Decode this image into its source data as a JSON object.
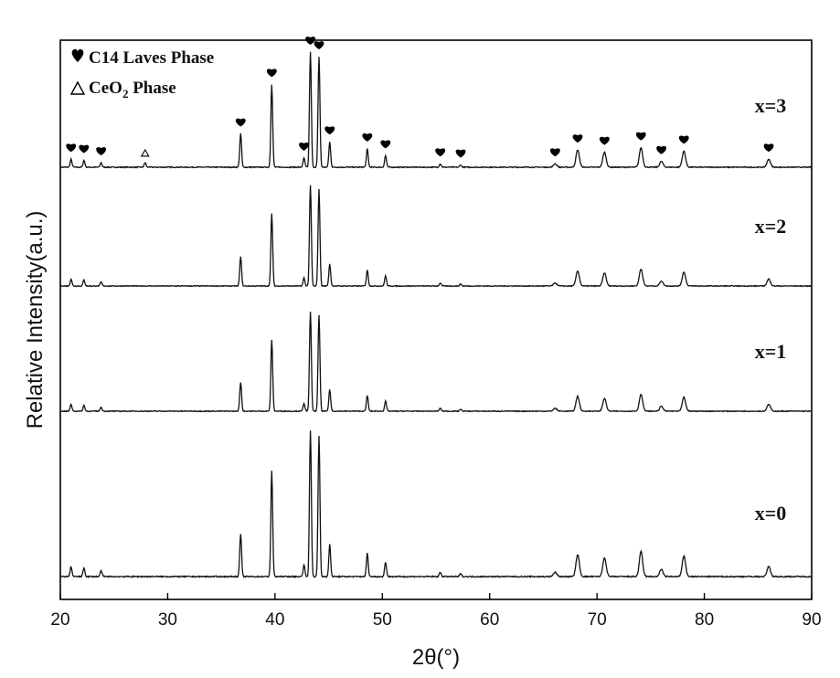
{
  "chart_data": {
    "type": "line",
    "xlabel": "2θ(°)",
    "ylabel": "Relative Intensity(a.u.)",
    "xlim": [
      20,
      90
    ],
    "xticks": [
      20,
      30,
      40,
      50,
      60,
      70,
      80,
      90
    ],
    "grid": false,
    "legend_position": "top-left",
    "legend": [
      {
        "marker": "heart",
        "label": "C14 Laves Phase"
      },
      {
        "marker": "triangle",
        "label": "CeO",
        "subscript": "2",
        "suffix": " Phase"
      }
    ],
    "peaks": [
      {
        "x": 21.0,
        "h": 0.07
      },
      {
        "x": 22.2,
        "h": 0.06
      },
      {
        "x": 23.8,
        "h": 0.04
      },
      {
        "x": 36.8,
        "h": 0.29
      },
      {
        "x": 39.7,
        "h": 0.72
      },
      {
        "x": 42.7,
        "h": 0.08
      },
      {
        "x": 43.3,
        "h": 1.0
      },
      {
        "x": 44.1,
        "h": 0.96
      },
      {
        "x": 45.1,
        "h": 0.22
      },
      {
        "x": 48.6,
        "h": 0.16
      },
      {
        "x": 50.3,
        "h": 0.1
      },
      {
        "x": 55.4,
        "h": 0.03
      },
      {
        "x": 57.3,
        "h": 0.02
      },
      {
        "x": 66.1,
        "h": 0.03
      },
      {
        "x": 68.2,
        "h": 0.15
      },
      {
        "x": 70.7,
        "h": 0.13
      },
      {
        "x": 74.1,
        "h": 0.17
      },
      {
        "x": 76.0,
        "h": 0.05
      },
      {
        "x": 78.1,
        "h": 0.14
      },
      {
        "x": 86.0,
        "h": 0.07
      }
    ],
    "series": [
      {
        "name": "x=3",
        "offset": 3,
        "scale": 1.0,
        "ceo2_peak": {
          "x": 27.9,
          "h": 0.04
        }
      },
      {
        "name": "x=2",
        "offset": 2,
        "scale": 1.0,
        "ceo2_peak": null
      },
      {
        "name": "x=1",
        "offset": 1,
        "scale": 1.0,
        "ceo2_peak": null
      },
      {
        "name": "x=0",
        "offset": 0,
        "scale": 1.3,
        "ceo2_peak": null
      }
    ],
    "laves_markers_x": [
      21.0,
      22.2,
      23.8,
      36.8,
      39.7,
      42.7,
      43.3,
      44.1,
      45.1,
      48.6,
      50.3,
      55.4,
      57.3,
      66.1,
      68.2,
      70.7,
      74.1,
      76.0,
      78.1,
      86.0
    ],
    "ceo2_markers_x": [
      27.9
    ]
  }
}
